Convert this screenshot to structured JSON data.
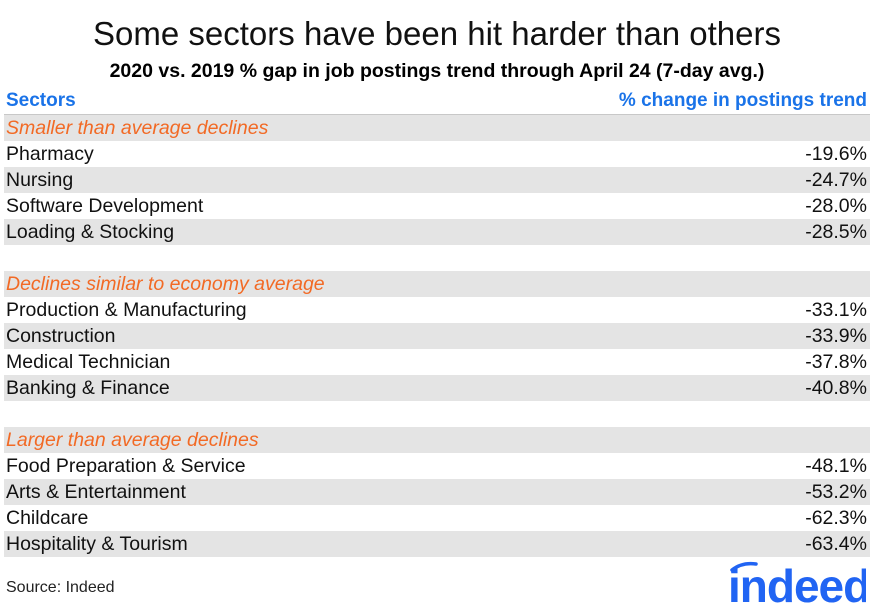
{
  "title": "Some sectors have been hit harder than others",
  "subtitle": "2020 vs. 2019 % gap in job postings trend through April 24 (7-day avg.)",
  "header": {
    "left": "Sectors",
    "right": "% change in postings trend"
  },
  "source": "Source: Indeed",
  "logo_text": "indeed",
  "colors": {
    "header": "#1a73e8",
    "group": "#f26a25",
    "shade": "#e4e4e4",
    "logo": "#2164f3"
  },
  "chart_data": {
    "type": "table",
    "columns": [
      "Sectors",
      "% change in postings trend"
    ],
    "groups": [
      {
        "label": "Smaller than average declines",
        "rows": [
          {
            "sector": "Pharmacy",
            "value": "-19.6%"
          },
          {
            "sector": "Nursing",
            "value": "-24.7%"
          },
          {
            "sector": "Software Development",
            "value": "-28.0%"
          },
          {
            "sector": "Loading & Stocking",
            "value": "-28.5%"
          }
        ]
      },
      {
        "label": "Declines similar to economy average",
        "rows": [
          {
            "sector": "Production & Manufacturing",
            "value": "-33.1%"
          },
          {
            "sector": "Construction",
            "value": "-33.9%"
          },
          {
            "sector": "Medical Technician",
            "value": "-37.8%"
          },
          {
            "sector": "Banking & Finance",
            "value": "-40.8%"
          }
        ]
      },
      {
        "label": "Larger than average declines",
        "rows": [
          {
            "sector": "Food Preparation & Service",
            "value": "-48.1%"
          },
          {
            "sector": "Arts & Entertainment",
            "value": "-53.2%"
          },
          {
            "sector": "Childcare",
            "value": "-62.3%"
          },
          {
            "sector": "Hospitality & Tourism",
            "value": "-63.4%"
          }
        ]
      }
    ]
  }
}
